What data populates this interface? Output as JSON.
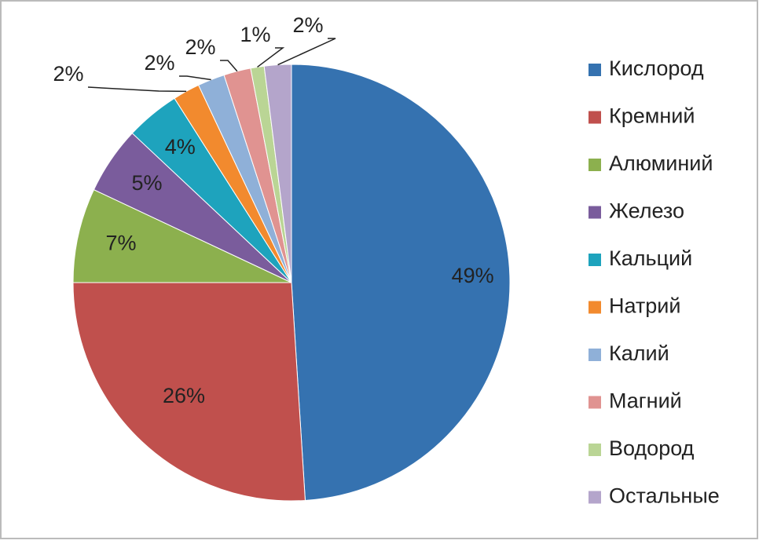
{
  "chart_data": {
    "type": "pie",
    "categories": [
      "Кислород",
      "Кремний",
      "Алюминий",
      "Железо",
      "Кальций",
      "Натрий",
      "Калий",
      "Магний",
      "Водород",
      "Остальные"
    ],
    "values": [
      49,
      26,
      7,
      5,
      4,
      2,
      2,
      2,
      1,
      2
    ],
    "value_labels": [
      "49%",
      "26%",
      "7%",
      "5%",
      "4%",
      "2%",
      "2%",
      "2%",
      "1%",
      "2%"
    ],
    "colors": [
      "#3572b0",
      "#c0504d",
      "#8cb04e",
      "#7a5c9c",
      "#1ea3bd",
      "#f28a2e",
      "#8fb0d8",
      "#e09391",
      "#bad595",
      "#b4a5cb"
    ],
    "legend": "right"
  }
}
